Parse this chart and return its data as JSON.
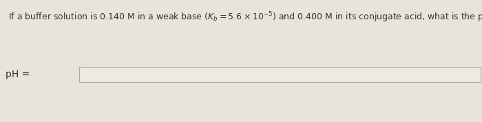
{
  "question_text": "If a buffer solution is 0.140 M in a weak base ($K_b = 5.6 \\times 10^{-5}$) and 0.400 M in its conjugate acid, what is the pH?",
  "label_text": "pH =",
  "bg_color": "#e8e4dc",
  "box_bg_color": "#edeae3",
  "box_border_color": "#aaaaaa",
  "text_color": "#333333",
  "question_fontsize": 9.0,
  "label_fontsize": 10.0,
  "fig_width": 7.0,
  "fig_height": 1.77,
  "dpi": 100
}
